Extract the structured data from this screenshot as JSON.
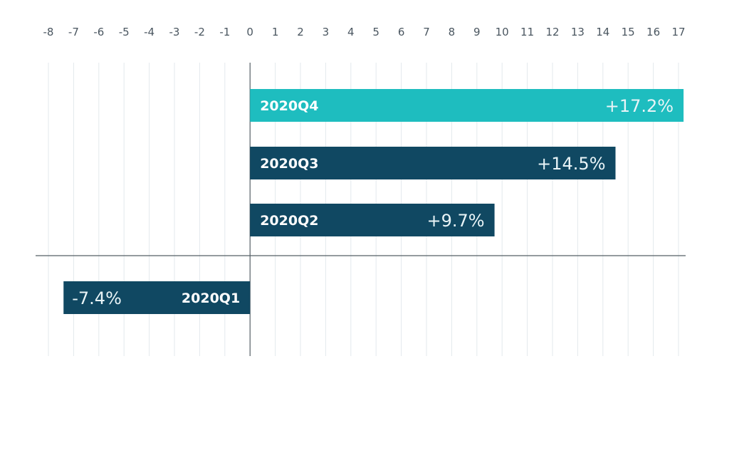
{
  "chart_data": {
    "type": "bar",
    "orientation": "horizontal",
    "categories": [
      "2020Q4",
      "2020Q3",
      "2020Q2",
      "2020Q1"
    ],
    "values": [
      17.2,
      14.5,
      9.7,
      -7.4
    ],
    "value_labels": [
      "+17.2%",
      "+14.5%",
      "+9.7%",
      "-7.4%"
    ],
    "x_ticks": [
      "-8",
      "-7",
      "-6",
      "-5",
      "-4",
      "-3",
      "-2",
      "-1",
      "0",
      "1",
      "2",
      "3",
      "4",
      "5",
      "6",
      "7",
      "8",
      "9",
      "10",
      "11",
      "12",
      "13",
      "14",
      "15",
      "16",
      "17"
    ],
    "xlim": [
      -8,
      17
    ],
    "tick_position": "top",
    "grid": true,
    "colors": {
      "highlight": "#1ebdbf",
      "default": "#104862",
      "gridline": "#e3e9ed",
      "axis": "#555f66",
      "tick_text": "#4a5660"
    },
    "highlight_category": "2020Q4",
    "title": "",
    "xlabel": "",
    "ylabel": ""
  }
}
